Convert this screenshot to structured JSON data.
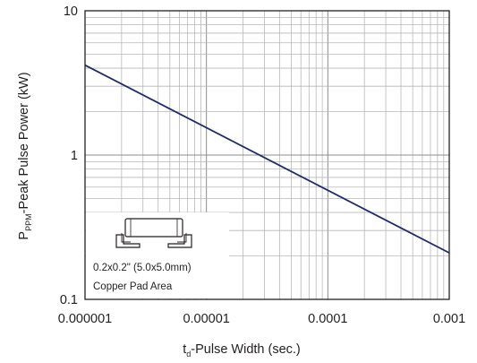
{
  "chart_data": {
    "type": "line",
    "title": "",
    "xscale": "log",
    "yscale": "log",
    "xlim": [
      1e-06,
      0.001
    ],
    "ylim": [
      0.1,
      10
    ],
    "grid": true,
    "xlabel": {
      "main": "t",
      "sub": "d",
      "rest": "-Pulse Width (sec.)"
    },
    "ylabel": {
      "main": "P",
      "sub": "PPM",
      "rest": "-Peak Pulse Power (kW)"
    },
    "x_ticks": [
      {
        "value": 1e-06,
        "label": "0.000001"
      },
      {
        "value": 1e-05,
        "label": "0.00001"
      },
      {
        "value": 0.0001,
        "label": "0.0001"
      },
      {
        "value": 0.001,
        "label": "0.001"
      }
    ],
    "y_ticks": [
      {
        "value": 0.1,
        "label": "0.1"
      },
      {
        "value": 1,
        "label": "1"
      },
      {
        "value": 10,
        "label": "10"
      }
    ],
    "series": [
      {
        "color": "#1f2a6b",
        "x": [
          1e-06,
          0.001
        ],
        "y": [
          4.2,
          0.21
        ]
      }
    ],
    "inset": {
      "line1": "0.2x0.2\" (5.0x5.0mm)",
      "line2": "Copper Pad Area",
      "icon": "pad-package-icon"
    }
  }
}
